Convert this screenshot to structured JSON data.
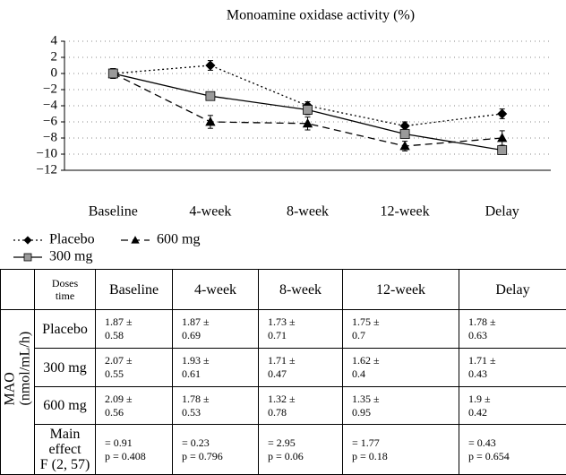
{
  "chart_data": {
    "type": "line",
    "title": "Monoamine oxidase activity (%)",
    "categories": [
      "Baseline",
      "4-week",
      "8-week",
      "12-week",
      "Delay"
    ],
    "series": [
      {
        "name": "Placebo",
        "color": "#000000",
        "marker": "diamond",
        "marker_fill": "#000000",
        "dash": "2,3",
        "values": [
          0,
          1,
          -4,
          -6.5,
          -5
        ],
        "errors": [
          0.6,
          0.6,
          0.5,
          0.5,
          0.6
        ]
      },
      {
        "name": "600 mg",
        "color": "#000000",
        "marker": "triangle",
        "marker_fill": "#000000",
        "dash": "8,5",
        "values": [
          0,
          -6,
          -6.2,
          -9,
          -8
        ],
        "errors": [
          0.6,
          0.8,
          0.8,
          0.6,
          0.9
        ]
      },
      {
        "name": "300 mg",
        "color": "#000000",
        "marker": "square",
        "marker_fill": "#9a9a9a",
        "dash": "",
        "values": [
          0,
          -2.8,
          -4.5,
          -7.5,
          -9.5
        ],
        "errors": [
          0.6,
          0.5,
          0.6,
          0.5,
          0.4
        ]
      }
    ],
    "ylim": [
      -12,
      4
    ],
    "yticks": [
      {
        "value": -12,
        "label": "−12"
      },
      {
        "value": -10,
        "label": "−10"
      },
      {
        "value": -8,
        "label": "−8"
      },
      {
        "value": -6,
        "label": "−6"
      },
      {
        "value": -4,
        "label": "−4"
      },
      {
        "value": -2,
        "label": "−2"
      },
      0,
      2,
      4
    ],
    "grid": true
  },
  "table": {
    "corner": [
      "Doses",
      "time"
    ],
    "columns": [
      "Baseline",
      "4-week",
      "8-week",
      "12-week",
      "Delay"
    ],
    "row_group": [
      "MAO",
      "(nmol/mL/h)"
    ],
    "rows": [
      {
        "label": [
          "Placebo"
        ],
        "cells": [
          [
            "1.87 ±",
            "0.58"
          ],
          [
            "1.87 ±",
            "0.69"
          ],
          [
            "1.73 ±",
            "0.71"
          ],
          [
            "1.75 ±",
            "0.7"
          ],
          [
            "1.78 ±",
            "0.63"
          ]
        ]
      },
      {
        "label": [
          "300 mg"
        ],
        "cells": [
          [
            "2.07 ±",
            "0.55"
          ],
          [
            "1.93 ±",
            "0.61"
          ],
          [
            "1.71 ±",
            "0.47"
          ],
          [
            "1.62 ±",
            "0.4"
          ],
          [
            "1.71 ±",
            "0.43"
          ]
        ]
      },
      {
        "label": [
          "600 mg"
        ],
        "cells": [
          [
            "2.09 ±",
            "0.56"
          ],
          [
            "1.78 ±",
            "0.53"
          ],
          [
            "1.32 ±",
            "0.78"
          ],
          [
            "1.35 ±",
            "0.95"
          ],
          [
            "1.9 ±",
            "0.42"
          ]
        ]
      },
      {
        "label": [
          "Main effect",
          "F (2, 57)"
        ],
        "cells": [
          [
            "= 0.91",
            "p = 0.408"
          ],
          [
            "= 0.23",
            "p = 0.796"
          ],
          [
            "= 2.95",
            "p = 0.06"
          ],
          [
            "= 1.77",
            "p = 0.18"
          ],
          [
            "= 0.43",
            "p = 0.654"
          ]
        ]
      }
    ]
  }
}
